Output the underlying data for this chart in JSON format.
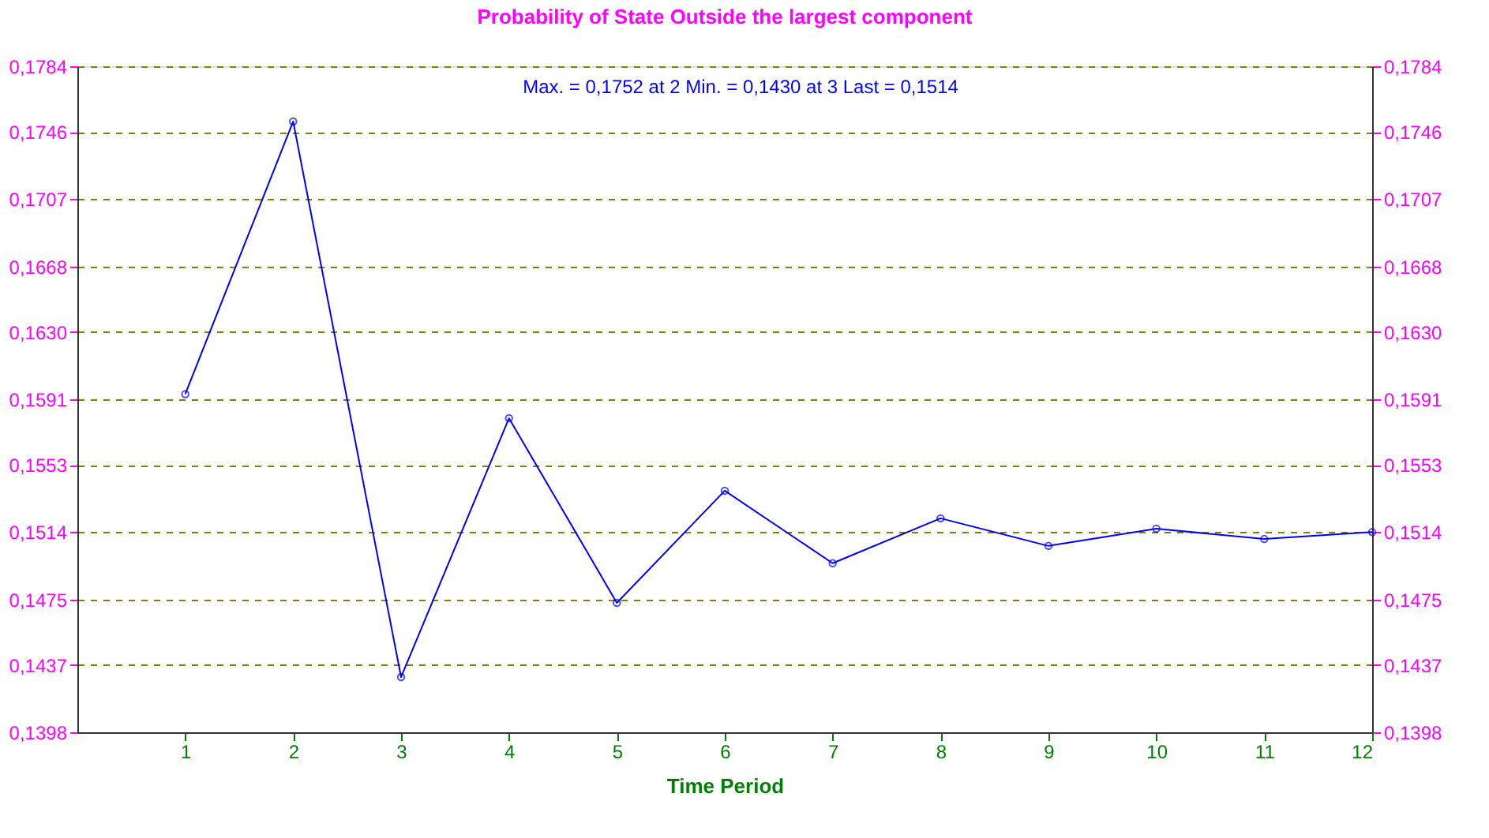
{
  "chart_data": {
    "type": "line",
    "title": "Probability of State Outside the largest component",
    "xlabel": "Time Period",
    "annotations": [
      "Max. = 0,1752 at 2   Min. = 0,1430 at 3   Last = 0,1514"
    ],
    "x": [
      1,
      2,
      3,
      4,
      5,
      6,
      7,
      8,
      9,
      10,
      11,
      12
    ],
    "series": [
      {
        "color": "#0000ff",
        "values": [
          0.1594,
          0.1752,
          0.143,
          0.158,
          0.1473,
          0.1538,
          0.1496,
          0.1522,
          0.1506,
          0.1516,
          0.151,
          0.1514
        ]
      }
    ],
    "xlim": [
      0,
      12
    ],
    "xticks": [
      1,
      2,
      3,
      4,
      5,
      6,
      7,
      8,
      9,
      10,
      11,
      12
    ],
    "ylim": [
      0.1398,
      0.1784
    ],
    "yticks": [
      {
        "value": 0.1398,
        "label": "0,1398"
      },
      {
        "value": 0.1437,
        "label": "0,1437"
      },
      {
        "value": 0.1475,
        "label": "0,1475"
      },
      {
        "value": 0.1514,
        "label": "0,1514"
      },
      {
        "value": 0.1553,
        "label": "0,1553"
      },
      {
        "value": 0.1591,
        "label": "0,1591"
      },
      {
        "value": 0.163,
        "label": "0,1630"
      },
      {
        "value": 0.1668,
        "label": "0,1668"
      },
      {
        "value": 0.1707,
        "label": "0,1707"
      },
      {
        "value": 0.1746,
        "label": "0,1746"
      },
      {
        "value": 0.1784,
        "label": "0,1784"
      }
    ],
    "y2lim": [
      0.1398,
      0.1784
    ],
    "y2ticks": [
      {
        "value": 0.1398,
        "label": "0,1398"
      },
      {
        "value": 0.1437,
        "label": "0,1437"
      },
      {
        "value": 0.1475,
        "label": "0,1475"
      },
      {
        "value": 0.1514,
        "label": "0,1514"
      },
      {
        "value": 0.1553,
        "label": "0,1553"
      },
      {
        "value": 0.1591,
        "label": "0,1591"
      },
      {
        "value": 0.163,
        "label": "0,1630"
      },
      {
        "value": 0.1668,
        "label": "0,1668"
      },
      {
        "value": 0.1707,
        "label": "0,1707"
      },
      {
        "value": 0.1746,
        "label": "0,1746"
      },
      {
        "value": 0.1784,
        "label": "0,1784"
      }
    ],
    "grid": "y",
    "marker": "circle",
    "line_style": "solid",
    "legend": false
  }
}
